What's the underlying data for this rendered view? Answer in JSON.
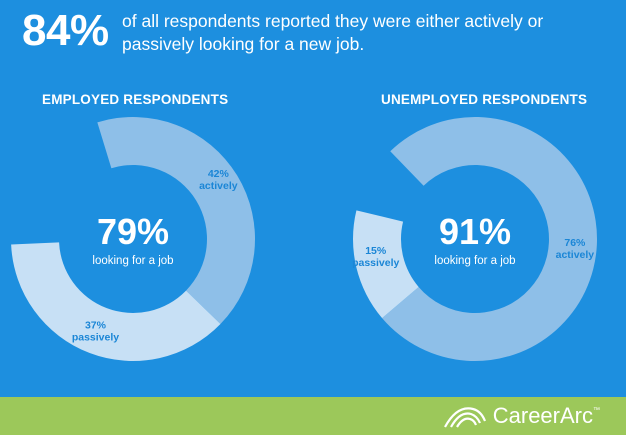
{
  "headline": {
    "percent": "84%",
    "text": "of all respondents reported they were either actively or passively looking for a new job."
  },
  "colors": {
    "background": "#1d8fdf",
    "actively": "#8ebfe8",
    "passively": "#c7e0f5",
    "label_text": "#1b86d6",
    "footer": "#9cc85a"
  },
  "chart_data": [
    {
      "type": "pie",
      "title": "EMPLOYED RESPONDENTS",
      "center_value": "79%",
      "center_label": "looking for a job",
      "slices": [
        {
          "pct_label": "42%",
          "name": "actively",
          "value": 42
        },
        {
          "pct_label": "37%",
          "name": "passively",
          "value": 37
        }
      ],
      "total": 79
    },
    {
      "type": "pie",
      "title": "UNEMPLOYED RESPONDENTS",
      "center_value": "91%",
      "center_label": "looking for a job",
      "slices": [
        {
          "pct_label": "76%",
          "name": "actively",
          "value": 76
        },
        {
          "pct_label": "15%",
          "name": "passively",
          "value": 15
        }
      ],
      "total": 91
    }
  ],
  "footer": {
    "brand": "CareerArc",
    "trademark": "™"
  }
}
